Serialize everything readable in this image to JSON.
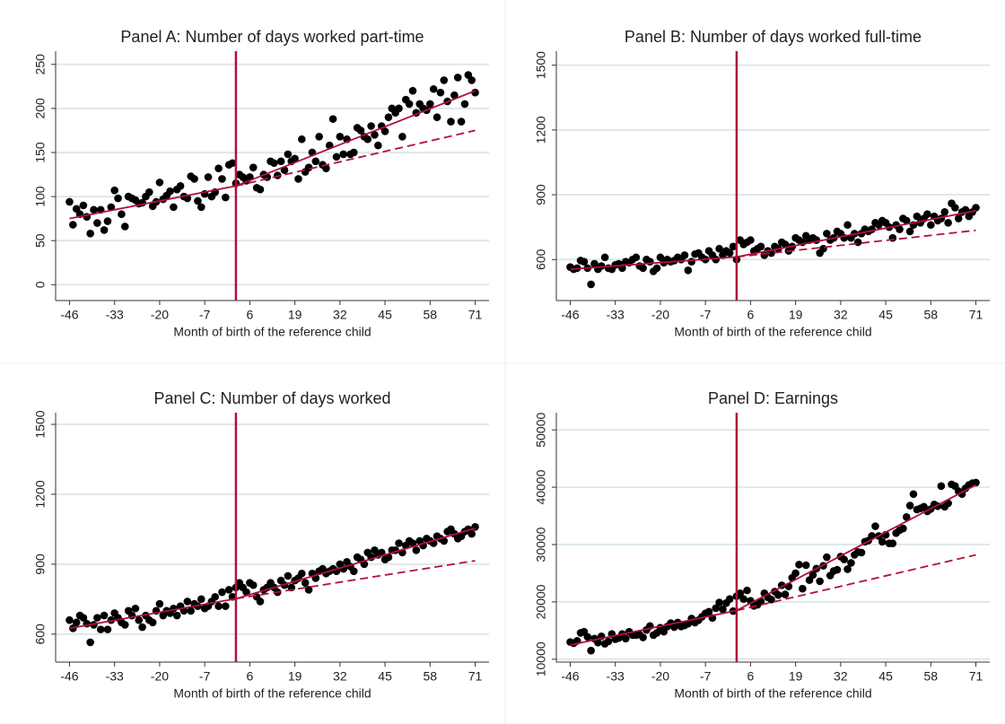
{
  "chart_data": [
    {
      "type": "scatter",
      "title": "Panel A: Number of days worked part-time",
      "xlabel": "Month of birth of the reference child",
      "color": "#000000",
      "fit_color": "#b0103a",
      "cutoff_x": 2,
      "grid": true,
      "xlim": [
        -50,
        75
      ],
      "xticks": [
        -46,
        -33,
        -20,
        -7,
        6,
        19,
        32,
        45,
        58,
        71
      ],
      "ylim": [
        -18,
        265
      ],
      "yticks": [
        0,
        50,
        100,
        150,
        200,
        250
      ],
      "x": [
        -46,
        -45,
        -44,
        -43,
        -42,
        -41,
        -40,
        -39,
        -38,
        -37,
        -36,
        -35,
        -34,
        -33,
        -32,
        -31,
        -30,
        -29,
        -28,
        -27,
        -26,
        -25,
        -24,
        -23,
        -22,
        -21,
        -20,
        -19,
        -18,
        -17,
        -16,
        -15,
        -14,
        -13,
        -12,
        -11,
        -10,
        -9,
        -8,
        -7,
        -6,
        -5,
        -4,
        -3,
        -2,
        -1,
        0,
        1,
        2,
        3,
        4,
        5,
        6,
        7,
        8,
        9,
        10,
        11,
        12,
        13,
        14,
        15,
        16,
        17,
        18,
        19,
        20,
        21,
        22,
        23,
        24,
        25,
        26,
        27,
        28,
        29,
        30,
        31,
        32,
        33,
        34,
        35,
        36,
        37,
        38,
        39,
        40,
        41,
        42,
        43,
        44,
        45,
        46,
        47,
        48,
        49,
        50,
        51,
        52,
        53,
        54,
        55,
        56,
        57,
        58,
        59,
        60,
        61,
        62,
        63,
        64,
        65,
        66,
        67,
        68,
        69,
        70,
        71
      ],
      "values": [
        94,
        68,
        86,
        80,
        90,
        77,
        58,
        85,
        70,
        85,
        62,
        72,
        88,
        107,
        98,
        80,
        66,
        100,
        98,
        96,
        92,
        93,
        100,
        105,
        89,
        94,
        116,
        97,
        101,
        106,
        88,
        108,
        112,
        100,
        98,
        123,
        120,
        95,
        88,
        103,
        122,
        100,
        105,
        132,
        120,
        99,
        136,
        138,
        115,
        125,
        122,
        118,
        122,
        133,
        110,
        108,
        125,
        122,
        140,
        138,
        124,
        140,
        130,
        148,
        140,
        143,
        120,
        165,
        128,
        133,
        150,
        140,
        168,
        136,
        132,
        158,
        188,
        145,
        168,
        148,
        165,
        148,
        150,
        178,
        175,
        168,
        165,
        180,
        170,
        158,
        180,
        174,
        190,
        200,
        195,
        200,
        168,
        210,
        205,
        220,
        195,
        205,
        200,
        198,
        205,
        222,
        190,
        218,
        232,
        208,
        185,
        215,
        235,
        185,
        205,
        238,
        232,
        218
      ],
      "fit_lines": [
        {
          "x": [
            -46,
            2
          ],
          "values": [
            75,
            112
          ],
          "style": "solid"
        },
        {
          "x": [
            2,
            71
          ],
          "values": [
            112,
            220
          ],
          "style": "solid"
        },
        {
          "x": [
            2,
            71
          ],
          "values": [
            112,
            175
          ],
          "style": "dashed"
        }
      ]
    },
    {
      "type": "scatter",
      "title": "Panel B: Number of days worked full-time",
      "xlabel": "Month of birth of the reference child",
      "color": "#000000",
      "fit_color": "#b0103a",
      "cutoff_x": 2,
      "grid": true,
      "xlim": [
        -50,
        75
      ],
      "xticks": [
        -46,
        -33,
        -20,
        -7,
        6,
        19,
        32,
        45,
        58,
        71
      ],
      "ylim": [
        410,
        1565
      ],
      "yticks": [
        600,
        900,
        1200,
        1500
      ],
      "x": [
        -46,
        -45,
        -44,
        -43,
        -42,
        -41,
        -40,
        -39,
        -38,
        -37,
        -36,
        -35,
        -34,
        -33,
        -32,
        -31,
        -30,
        -29,
        -28,
        -27,
        -26,
        -25,
        -24,
        -23,
        -22,
        -21,
        -20,
        -19,
        -18,
        -17,
        -16,
        -15,
        -14,
        -13,
        -12,
        -11,
        -10,
        -9,
        -8,
        -7,
        -6,
        -5,
        -4,
        -3,
        -2,
        -1,
        0,
        1,
        2,
        3,
        4,
        5,
        6,
        7,
        8,
        9,
        10,
        11,
        12,
        13,
        14,
        15,
        16,
        17,
        18,
        19,
        20,
        21,
        22,
        23,
        24,
        25,
        26,
        27,
        28,
        29,
        30,
        31,
        32,
        33,
        34,
        35,
        36,
        37,
        38,
        39,
        40,
        41,
        42,
        43,
        44,
        45,
        46,
        47,
        48,
        49,
        50,
        51,
        52,
        53,
        54,
        55,
        56,
        57,
        58,
        59,
        60,
        61,
        62,
        63,
        64,
        65,
        66,
        67,
        68,
        69,
        70,
        71
      ],
      "values": [
        565,
        555,
        560,
        595,
        590,
        560,
        485,
        580,
        555,
        570,
        610,
        560,
        555,
        575,
        580,
        560,
        590,
        585,
        600,
        610,
        570,
        560,
        600,
        590,
        545,
        560,
        610,
        585,
        600,
        590,
        595,
        610,
        600,
        620,
        550,
        590,
        625,
        630,
        610,
        600,
        640,
        620,
        600,
        650,
        620,
        640,
        630,
        660,
        600,
        690,
        670,
        680,
        690,
        640,
        650,
        660,
        620,
        640,
        630,
        660,
        650,
        680,
        670,
        640,
        660,
        700,
        690,
        680,
        710,
        690,
        700,
        690,
        630,
        650,
        720,
        690,
        700,
        730,
        720,
        700,
        760,
        700,
        720,
        680,
        720,
        740,
        730,
        740,
        770,
        760,
        780,
        770,
        750,
        700,
        760,
        740,
        790,
        780,
        730,
        760,
        800,
        770,
        790,
        810,
        760,
        800,
        780,
        790,
        820,
        770,
        860,
        840,
        790,
        820,
        830,
        800,
        820,
        840
      ],
      "fit_lines": [
        {
          "x": [
            -46,
            2
          ],
          "values": [
            555,
            612
          ],
          "style": "solid"
        },
        {
          "x": [
            2,
            71
          ],
          "values": [
            612,
            826
          ],
          "style": "solid"
        },
        {
          "x": [
            2,
            71
          ],
          "values": [
            612,
            735
          ],
          "style": "dashed"
        }
      ]
    },
    {
      "type": "scatter",
      "title": "Panel C: Number of days worked",
      "xlabel": "Month of birth of the reference child",
      "color": "#000000",
      "fit_color": "#b0103a",
      "cutoff_x": 2,
      "grid": true,
      "xlim": [
        -50,
        75
      ],
      "xticks": [
        -46,
        -33,
        -20,
        -7,
        6,
        19,
        32,
        45,
        58,
        71
      ],
      "ylim": [
        480,
        1550
      ],
      "yticks": [
        600,
        900,
        1200,
        1500
      ],
      "x": [
        -46,
        -45,
        -44,
        -43,
        -42,
        -41,
        -40,
        -39,
        -38,
        -37,
        -36,
        -35,
        -34,
        -33,
        -32,
        -31,
        -30,
        -29,
        -28,
        -27,
        -26,
        -25,
        -24,
        -23,
        -22,
        -21,
        -20,
        -19,
        -18,
        -17,
        -16,
        -15,
        -14,
        -13,
        -12,
        -11,
        -10,
        -9,
        -8,
        -7,
        -6,
        -5,
        -4,
        -3,
        -2,
        -1,
        0,
        1,
        2,
        3,
        4,
        5,
        6,
        7,
        8,
        9,
        10,
        11,
        12,
        13,
        14,
        15,
        16,
        17,
        18,
        19,
        20,
        21,
        22,
        23,
        24,
        25,
        26,
        27,
        28,
        29,
        30,
        31,
        32,
        33,
        34,
        35,
        36,
        37,
        38,
        39,
        40,
        41,
        42,
        43,
        44,
        45,
        46,
        47,
        48,
        49,
        50,
        51,
        52,
        53,
        54,
        55,
        56,
        57,
        58,
        59,
        60,
        61,
        62,
        63,
        64,
        65,
        66,
        67,
        68,
        69,
        70,
        71
      ],
      "values": [
        660,
        625,
        650,
        680,
        670,
        645,
        565,
        640,
        670,
        620,
        680,
        620,
        660,
        690,
        670,
        650,
        640,
        700,
        680,
        710,
        660,
        630,
        680,
        660,
        650,
        700,
        730,
        680,
        700,
        690,
        710,
        680,
        720,
        700,
        740,
        700,
        730,
        720,
        750,
        710,
        720,
        740,
        760,
        720,
        780,
        720,
        790,
        760,
        800,
        820,
        800,
        780,
        820,
        810,
        760,
        740,
        790,
        800,
        820,
        800,
        780,
        830,
        810,
        850,
        800,
        830,
        840,
        860,
        820,
        790,
        860,
        840,
        870,
        880,
        860,
        870,
        880,
        870,
        900,
        880,
        910,
        890,
        870,
        930,
        920,
        900,
        950,
        930,
        960,
        940,
        950,
        920,
        930,
        960,
        960,
        990,
        950,
        980,
        1000,
        990,
        960,
        1000,
        980,
        1010,
        1000,
        990,
        1020,
        1010,
        1000,
        1040,
        1050,
        1030,
        1010,
        1020,
        1040,
        1050,
        1030,
        1060
      ],
      "fit_lines": [
        {
          "x": [
            -46,
            2
          ],
          "values": [
            625,
            752
          ],
          "style": "solid"
        },
        {
          "x": [
            2,
            71
          ],
          "values": [
            752,
            1054
          ],
          "style": "solid"
        },
        {
          "x": [
            2,
            71
          ],
          "values": [
            752,
            915
          ],
          "style": "dashed"
        }
      ]
    },
    {
      "type": "scatter",
      "title": "Panel D: Earnings",
      "xlabel": "Month of birth of the reference child",
      "color": "#000000",
      "fit_color": "#b0103a",
      "cutoff_x": 2,
      "grid": true,
      "xlim": [
        -50,
        75
      ],
      "xticks": [
        -46,
        -33,
        -20,
        -7,
        6,
        19,
        32,
        45,
        58,
        71
      ],
      "ylim": [
        9500,
        53000
      ],
      "yticks": [
        10000,
        20000,
        30000,
        40000,
        50000
      ],
      "x": [
        -46,
        -45,
        -44,
        -43,
        -42,
        -41,
        -40,
        -39,
        -38,
        -37,
        -36,
        -35,
        -34,
        -33,
        -32,
        -31,
        -30,
        -29,
        -28,
        -27,
        -26,
        -25,
        -24,
        -23,
        -22,
        -21,
        -20,
        -19,
        -18,
        -17,
        -16,
        -15,
        -14,
        -13,
        -12,
        -11,
        -10,
        -9,
        -8,
        -7,
        -6,
        -5,
        -4,
        -3,
        -2,
        -1,
        0,
        1,
        2,
        3,
        4,
        5,
        6,
        7,
        8,
        9,
        10,
        11,
        12,
        13,
        14,
        15,
        16,
        17,
        18,
        19,
        20,
        21,
        22,
        23,
        24,
        25,
        26,
        27,
        28,
        29,
        30,
        31,
        32,
        33,
        34,
        35,
        36,
        37,
        38,
        39,
        40,
        41,
        42,
        43,
        44,
        45,
        46,
        47,
        48,
        49,
        50,
        51,
        52,
        53,
        54,
        55,
        56,
        57,
        58,
        59,
        60,
        61,
        62,
        63,
        64,
        65,
        66,
        67,
        68,
        69,
        70,
        71
      ],
      "values": [
        13000,
        12800,
        13200,
        14600,
        14800,
        13900,
        11500,
        13600,
        12900,
        14000,
        12700,
        13100,
        14400,
        13500,
        13700,
        14400,
        13600,
        14800,
        14200,
        14200,
        14300,
        13800,
        15100,
        15800,
        14200,
        14600,
        15500,
        14800,
        15700,
        16300,
        15600,
        16400,
        15700,
        15900,
        16200,
        17100,
        16400,
        16800,
        17400,
        18000,
        18300,
        17200,
        18900,
        19900,
        18700,
        19800,
        20500,
        18400,
        21000,
        21500,
        20500,
        22000,
        20200,
        19300,
        19500,
        20100,
        21500,
        20800,
        20400,
        21800,
        21200,
        22900,
        21300,
        22700,
        24200,
        25000,
        26500,
        22300,
        26400,
        23800,
        24700,
        25800,
        23600,
        26300,
        27800,
        24600,
        25400,
        25600,
        27900,
        27400,
        25700,
        26800,
        28200,
        28700,
        28600,
        30500,
        30700,
        31500,
        33200,
        31500,
        30500,
        31700,
        30200,
        30200,
        32000,
        32500,
        32800,
        34800,
        36800,
        38800,
        36100,
        36300,
        36600,
        35800,
        36200,
        37000,
        36700,
        40200,
        36600,
        37200,
        40500,
        40200,
        39300,
        38800,
        39800,
        40400,
        40700,
        40800
      ],
      "fit_lines": [
        {
          "x": [
            -46,
            2
          ],
          "values": [
            12500,
            18500
          ],
          "style": "solid"
        },
        {
          "x": [
            2,
            71
          ],
          "values": [
            18500,
            40400
          ],
          "style": "solid"
        },
        {
          "x": [
            2,
            71
          ],
          "values": [
            18500,
            28200
          ],
          "style": "dashed"
        }
      ]
    }
  ]
}
